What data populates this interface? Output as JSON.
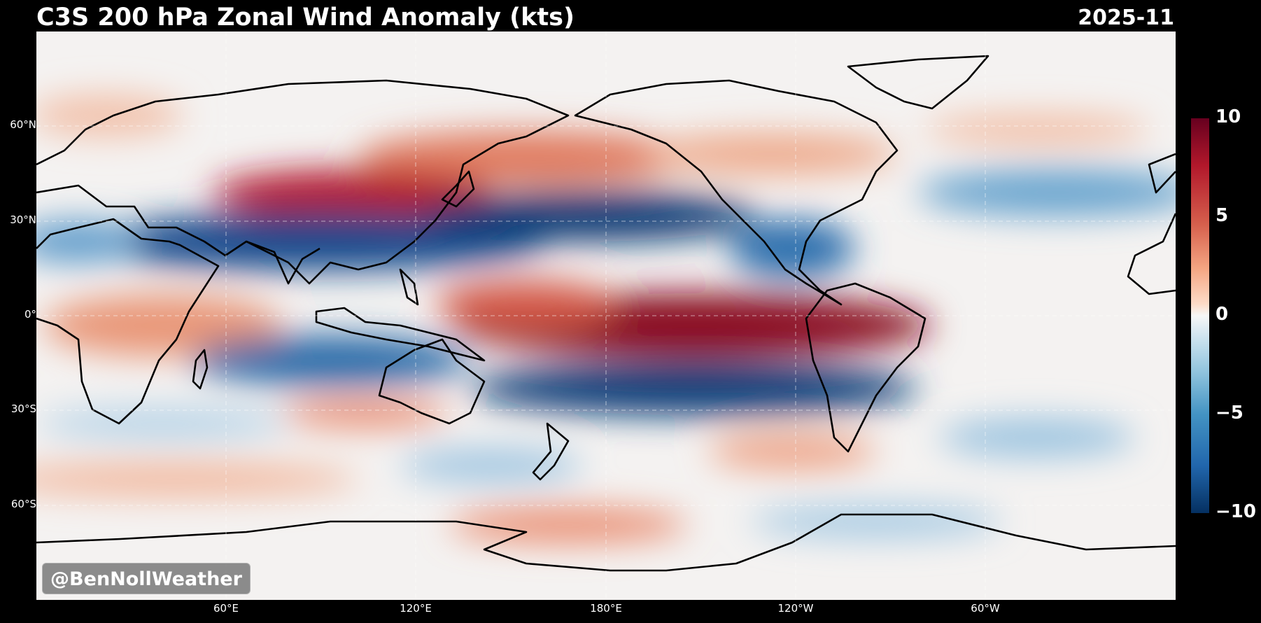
{
  "header": {
    "title": "C3S 200 hPa Zonal Wind Anomaly (kts)",
    "date": "2025-11"
  },
  "map": {
    "variable": "200 hPa Zonal Wind Anomaly",
    "units": "kts",
    "projection": "equirectangular, Pacific-centered",
    "lat_labels": [
      "60°N",
      "30°N",
      "0°",
      "30°S",
      "60°S"
    ],
    "lon_labels": [
      "60°E",
      "120°E",
      "180°E",
      "120°W",
      "60°W"
    ],
    "gridlines": true,
    "coastlines": true,
    "borders": true
  },
  "colorbar": {
    "colormap": "RdBu_r",
    "min": -10,
    "max": 10,
    "ticks": [
      "10",
      "5",
      "0",
      "−5",
      "−10"
    ],
    "colors": {
      "max": "#67001f",
      "mid": "#f7f7f7",
      "min": "#053061"
    }
  },
  "credit": {
    "text": "@BenNollWeather"
  }
}
